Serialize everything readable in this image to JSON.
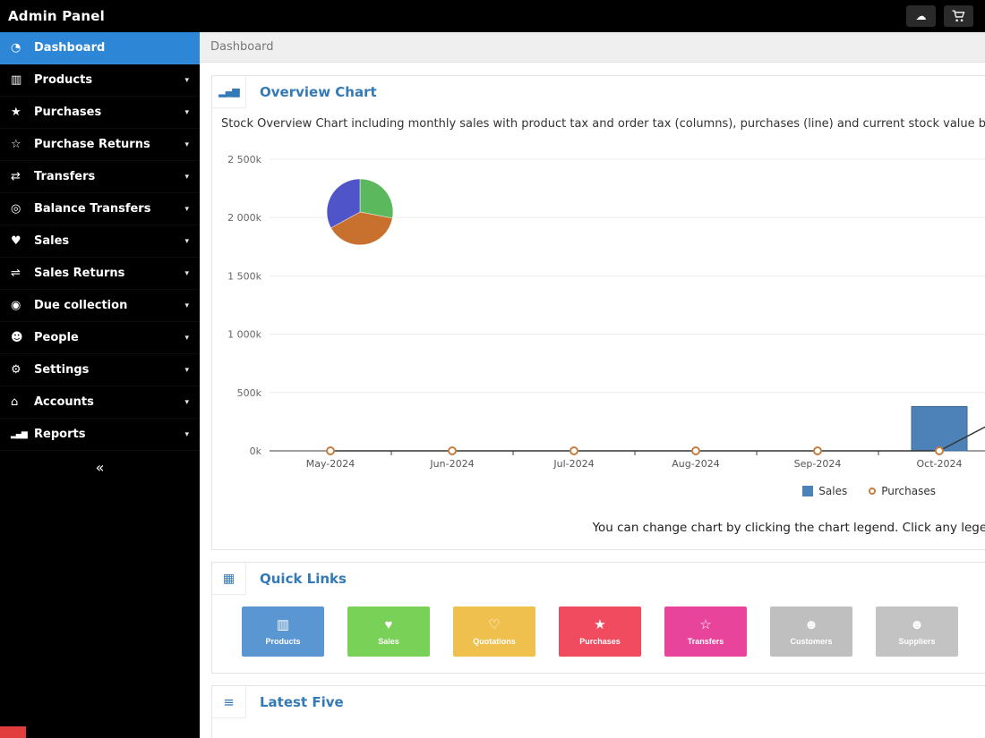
{
  "colors": {
    "accent": "#2e86d6",
    "panel_heading": "#337ab7",
    "fragment": "#e23d3d"
  },
  "topbar": {
    "title": "Admin Panel",
    "cloud_icon": "☁"
  },
  "sidebar": {
    "chevron": "▾",
    "collapse_label": "«",
    "items": [
      {
        "label": "Dashboard",
        "icon": "◔",
        "active": true
      },
      {
        "label": "Products",
        "icon": "▥"
      },
      {
        "label": "Purchases",
        "icon": "★"
      },
      {
        "label": "Purchase Returns",
        "icon": "☆"
      },
      {
        "label": "Transfers",
        "icon": "⇄"
      },
      {
        "label": "Balance Transfers",
        "icon": "◎"
      },
      {
        "label": "Sales",
        "icon": "♥"
      },
      {
        "label": "Sales Returns",
        "icon": "⇌"
      },
      {
        "label": "Due collection",
        "icon": "◉"
      },
      {
        "label": "People",
        "icon": "☻"
      },
      {
        "label": "Settings",
        "icon": "⚙"
      },
      {
        "label": "Accounts",
        "icon": "⌂"
      },
      {
        "label": "Reports",
        "icon": "▂▄▆"
      }
    ]
  },
  "breadcrumb": {
    "current": "Dashboard"
  },
  "overview_panel": {
    "icon": "▂▄▆",
    "title": "Overview Chart",
    "description": "Stock Overview Chart including monthly sales with product tax and order tax (columns), purchases (line) and current stock value by cost and price (pie).",
    "note": "You can change chart by clicking the chart legend. Click any legend above",
    "legend": [
      {
        "label": "Sales",
        "color": "#4d82b8",
        "marker": "square"
      },
      {
        "label": "Purchases",
        "color": "#c87d3f",
        "marker": "circle"
      }
    ]
  },
  "chart_data": {
    "type": "mixed",
    "title": "Overview Chart",
    "categories": [
      "May-2024",
      "Jun-2024",
      "Jul-2024",
      "Aug-2024",
      "Sep-2024",
      "Oct-2024"
    ],
    "series": [
      {
        "name": "Sales",
        "type": "bar",
        "color": "#4d82b8",
        "values": [
          0,
          0,
          0,
          0,
          0,
          380000
        ]
      },
      {
        "name": "Purchases",
        "type": "line",
        "color": "#c87d3f",
        "values": [
          0,
          0,
          0,
          0,
          0,
          0
        ],
        "continues_offscreen": true
      }
    ],
    "pie": {
      "label": "Current stock value by cost and price",
      "slices": [
        {
          "color": "#5cb85c",
          "value": 28
        },
        {
          "color": "#c8702e",
          "value": 39
        },
        {
          "color": "#4f55c8",
          "value": 33
        }
      ]
    },
    "ylim": [
      0,
      2500000
    ],
    "yticks": [
      "0k",
      "500k",
      "1 000k",
      "1 500k",
      "2 000k",
      "2 500k"
    ],
    "grid": true,
    "legend_position": "bottom-right"
  },
  "quick_links": {
    "icon": "▦",
    "title": "Quick Links",
    "links": [
      {
        "label": "Products",
        "icon": "▥",
        "color": "#5a96d2"
      },
      {
        "label": "Sales",
        "icon": "♥",
        "color": "#79d157"
      },
      {
        "label": "Quotations",
        "icon": "♡",
        "color": "#f0c04e"
      },
      {
        "label": "Purchases",
        "icon": "★",
        "color": "#f04b5f"
      },
      {
        "label": "Transfers",
        "icon": "☆",
        "color": "#e8449c"
      },
      {
        "label": "Customers",
        "icon": "☻",
        "color": "#bfbfbf"
      },
      {
        "label": "Suppliers",
        "icon": "☻",
        "color": "#c3c3c3"
      }
    ]
  },
  "latest_five": {
    "icon": "≡",
    "title": "Latest Five"
  }
}
